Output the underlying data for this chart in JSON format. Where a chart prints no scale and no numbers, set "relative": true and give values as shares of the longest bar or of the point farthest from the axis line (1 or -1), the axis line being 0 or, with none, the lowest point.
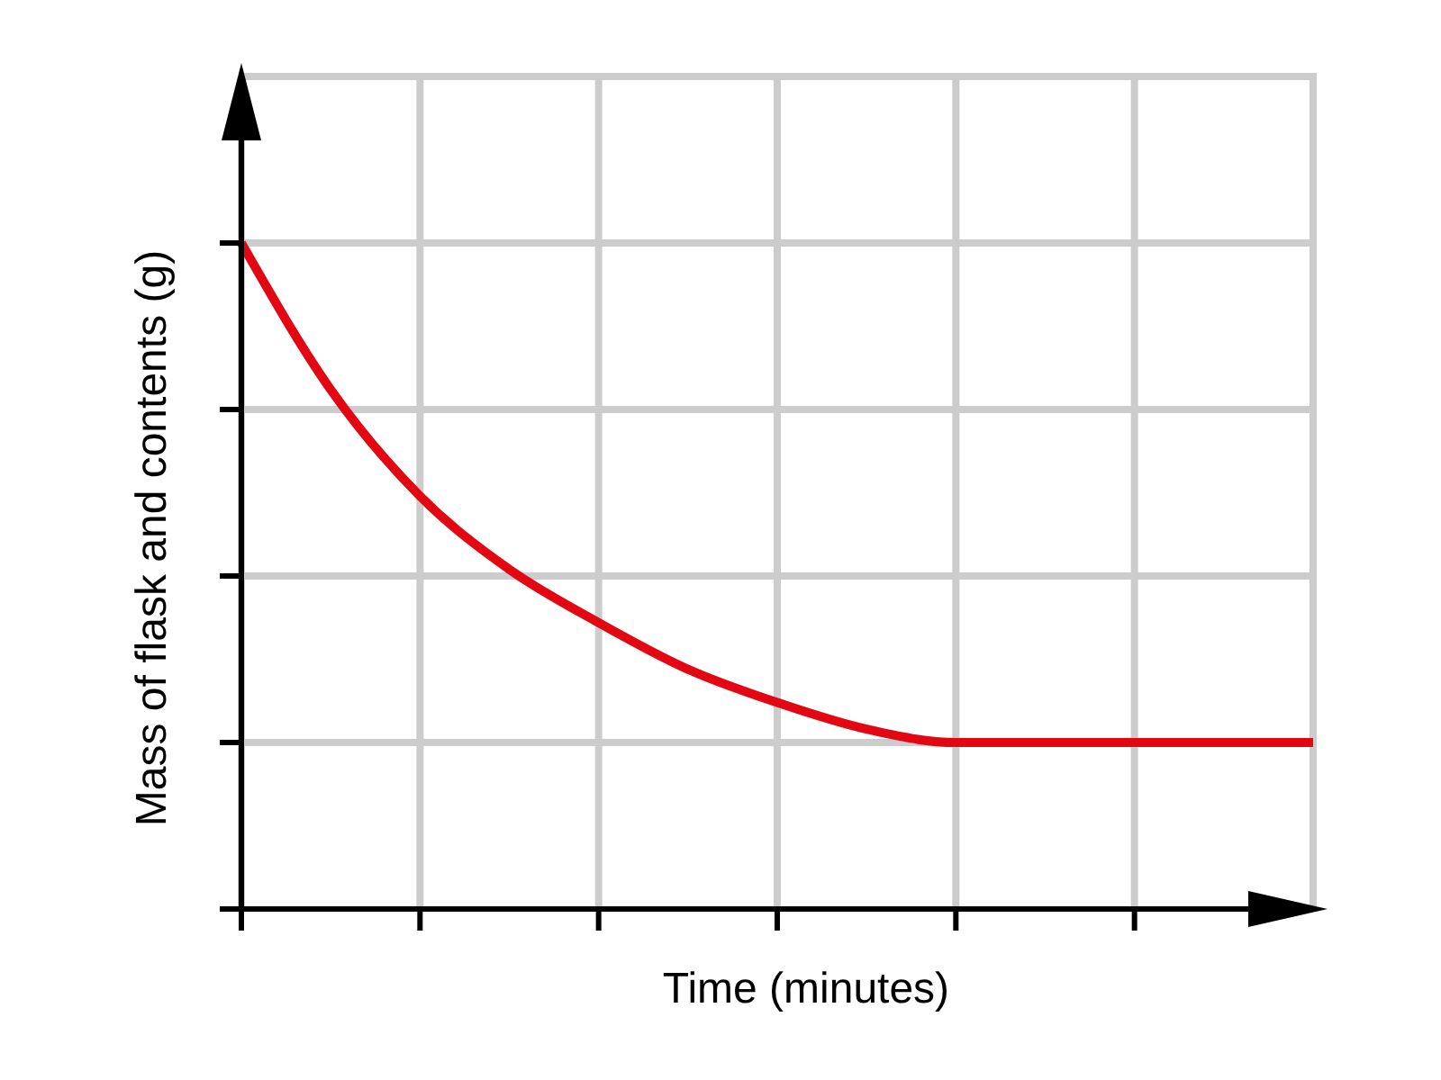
{
  "chart_data": {
    "type": "line",
    "xlabel": "Time (minutes)",
    "ylabel": "Mass of flask and contents (g)",
    "relative": true,
    "grid": true,
    "categories": [
      null,
      null,
      null,
      null,
      null,
      null,
      null,
      null,
      null,
      null,
      null,
      null,
      null
    ],
    "series": [
      {
        "color": "#e30613",
        "values": [
          1,
          0.78,
          0.62,
          0.51,
          0.43,
          0.36,
          0.31,
          0.27,
          0.25,
          0.25,
          0.25,
          0.25,
          0.25
        ]
      }
    ]
  }
}
